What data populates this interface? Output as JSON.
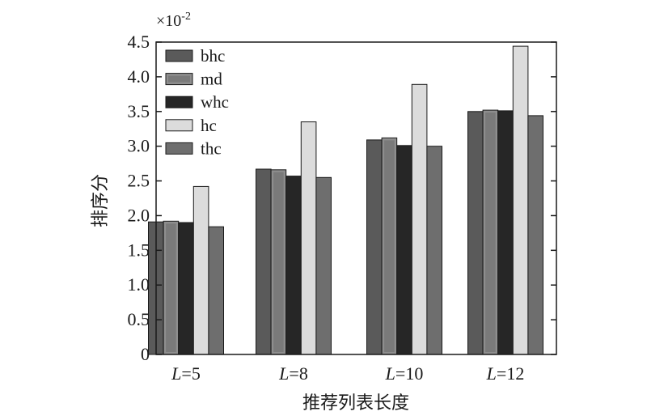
{
  "chart_data": {
    "type": "bar",
    "scale_label": "×10",
    "scale_exponent": "-2",
    "ylabel": "排序分",
    "xlabel": "推荐列表长度",
    "categories": [
      {
        "italic": "L",
        "rest": "=5"
      },
      {
        "italic": "L",
        "rest": "=8"
      },
      {
        "italic": "L",
        "rest": "=10"
      },
      {
        "italic": "L",
        "rest": "=12"
      }
    ],
    "ylim": [
      0,
      4.5
    ],
    "yticks": [
      "0",
      "0.5",
      "1.0",
      "1.5",
      "2.0",
      "2.5",
      "3.0",
      "3.5",
      "4.0",
      "4.5"
    ],
    "legend_position": "top-left",
    "series": [
      {
        "name": "bhc",
        "color": "#5a5a5a",
        "values": [
          1.91,
          2.67,
          3.09,
          3.5
        ]
      },
      {
        "name": "md",
        "color": "#8e8e8e",
        "inner": "#7a7a7a",
        "values": [
          1.92,
          2.66,
          3.12,
          3.52
        ]
      },
      {
        "name": "whc",
        "color": "#262626",
        "values": [
          1.9,
          2.57,
          3.01,
          3.51
        ]
      },
      {
        "name": "hc",
        "color": "#dcdcdc",
        "values": [
          2.42,
          3.35,
          3.89,
          4.44
        ]
      },
      {
        "name": "thc",
        "color": "#6e6e6e",
        "values": [
          1.84,
          2.55,
          3.0,
          3.44
        ]
      }
    ]
  }
}
